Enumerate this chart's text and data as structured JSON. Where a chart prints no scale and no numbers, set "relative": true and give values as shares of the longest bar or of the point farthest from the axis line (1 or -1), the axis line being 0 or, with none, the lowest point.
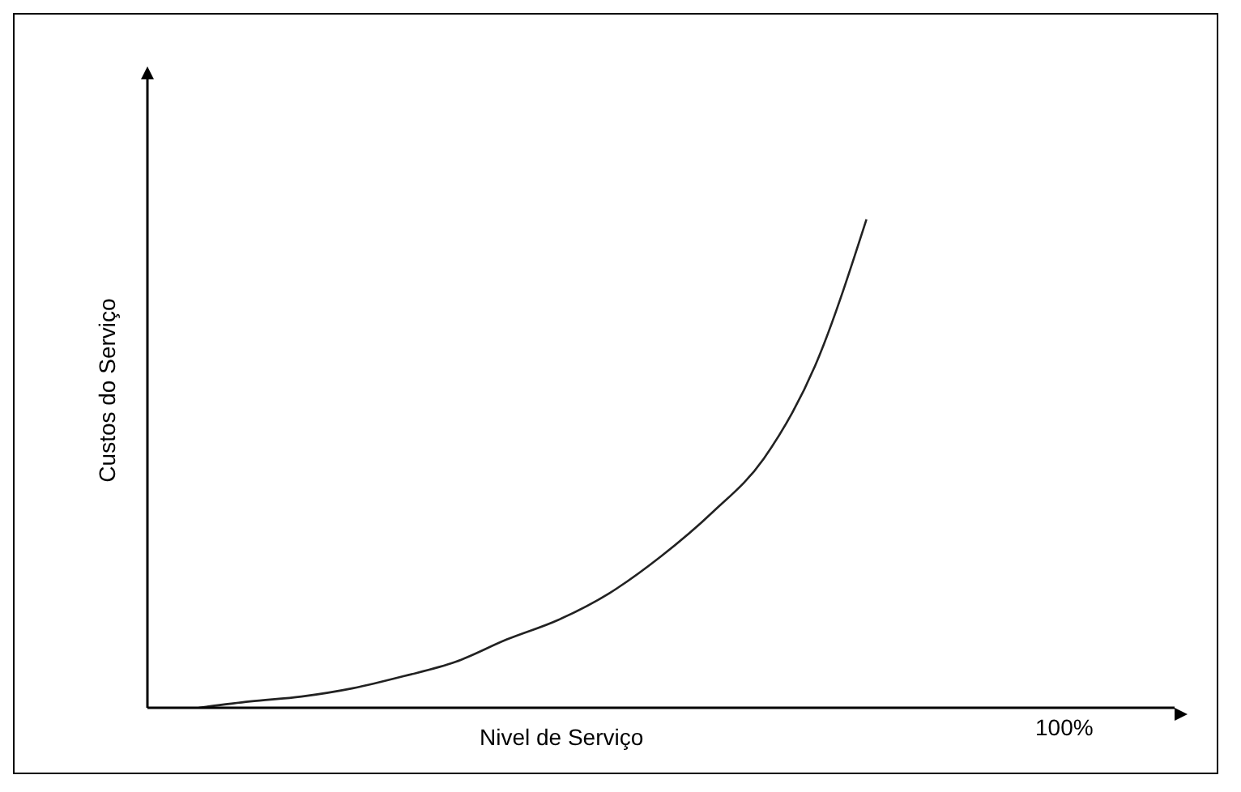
{
  "chart_data": {
    "type": "line",
    "relative": true,
    "xlabel": "Nivel de Serviço",
    "ylabel": "Custos do Serviço",
    "annotations": [
      "100%"
    ],
    "categories": [
      null,
      null,
      null,
      null,
      null,
      null,
      null,
      null,
      null,
      null,
      null,
      null,
      null,
      null,
      null,
      null,
      null,
      null,
      null,
      null,
      null
    ],
    "series": [
      {
        "color": "#222222",
        "values": [
          null,
          0,
          0.013,
          0.023,
          0.04,
          0.065,
          0.094,
          0.14,
          0.18,
          0.235,
          0.31,
          0.4,
          0.51,
          0.7,
          1,
          null,
          null,
          null,
          null,
          null,
          null
        ]
      }
    ],
    "grid": false,
    "marker": "none",
    "line_style": "solid"
  }
}
